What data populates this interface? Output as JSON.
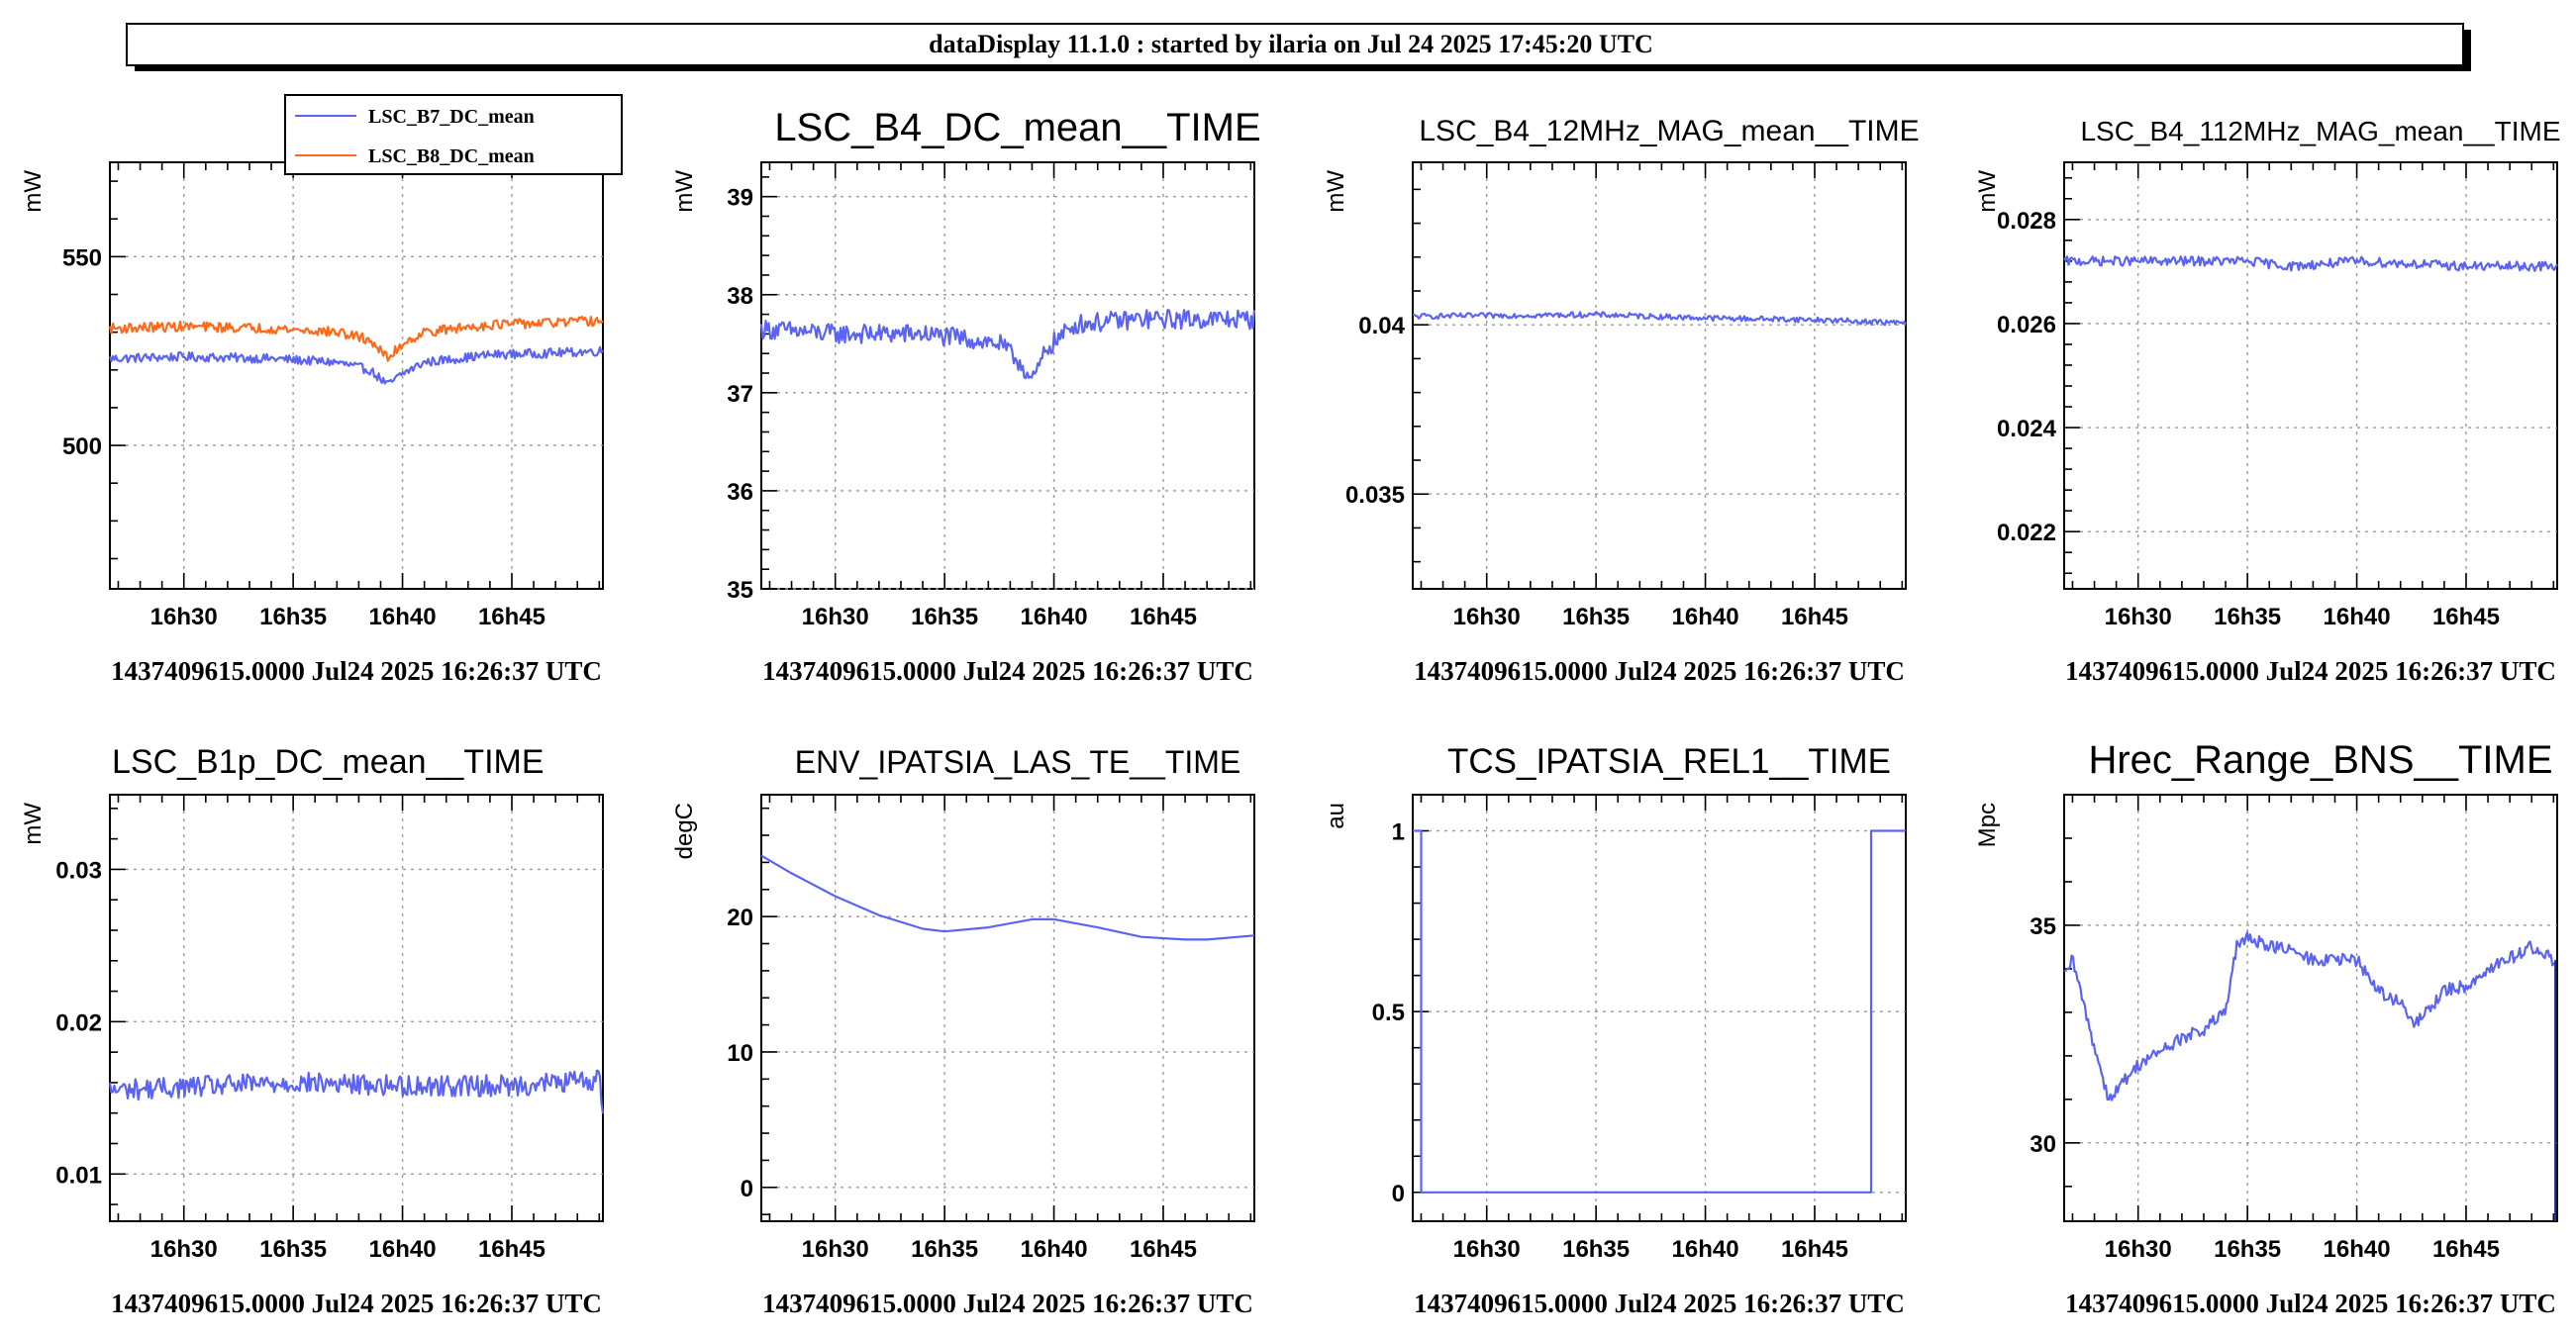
{
  "header": {
    "title": "dataDisplay 11.1.0 : started by ilaria on Jul 24 2025 17:45:20 UTC"
  },
  "colors": {
    "blue": "#5b64f2",
    "orange": "#ff6a1a",
    "navy": "#1f2c8e"
  },
  "chart_data": [
    {
      "type": "line",
      "title": "",
      "ylabel": "mW",
      "footer": "1437409615.0000 Jul24 2025 16:26:37 UTC",
      "x_ticks": [
        "16h30",
        "16h35",
        "16h40",
        "16h45"
      ],
      "xlim": [
        "16h26m37s",
        "16h49m10s"
      ],
      "ylim": [
        462,
        575
      ],
      "y_ticks": [
        500,
        550
      ],
      "y_tick_labels": [
        "500",
        "550"
      ],
      "legend": {
        "placement": "top",
        "entries": [
          "LSC_B7_DC_mean",
          "LSC_B8_DC_mean"
        ]
      },
      "series": [
        {
          "name": "LSC_B7_DC_mean",
          "color": "#5b64f2",
          "noise": 1.2,
          "x": [
            "16h26m37s",
            "16h30m",
            "16h34m",
            "16h37m",
            "16h38m30s",
            "16h39m20s",
            "16h40m",
            "16h41m",
            "16h44m",
            "16h47m",
            "16h49m10s"
          ],
          "y": [
            523,
            523.5,
            523,
            522,
            520,
            516,
            519,
            522,
            524,
            524.5,
            525
          ]
        },
        {
          "name": "LSC_B8_DC_mean",
          "color": "#ff6a1a",
          "noise": 1.3,
          "x": [
            "16h26m37s",
            "16h30m",
            "16h34m",
            "16h37m",
            "16h38m30s",
            "16h39m20s",
            "16h40m",
            "16h41m",
            "16h44m",
            "16h47m",
            "16h49m10s"
          ],
          "y": [
            531,
            531.5,
            531,
            530,
            528,
            523,
            527,
            530,
            532,
            532.5,
            533
          ]
        }
      ]
    },
    {
      "type": "line",
      "title": "LSC_B4_DC_mean__TIME",
      "ylabel": "mW",
      "footer": "1437409615.0000 Jul24 2025 16:26:37 UTC",
      "x_ticks": [
        "16h30",
        "16h35",
        "16h40",
        "16h45"
      ],
      "xlim": [
        "16h26m37s",
        "16h49m10s"
      ],
      "ylim": [
        35,
        39.35
      ],
      "y_ticks": [
        35,
        36,
        37,
        38,
        39
      ],
      "y_tick_labels": [
        "35",
        "36",
        "37",
        "38",
        "39"
      ],
      "series": [
        {
          "name": "",
          "color": "#5b64f2",
          "noise": 0.1,
          "x": [
            "16h26m37s",
            "16h30m",
            "16h34m",
            "16h36m",
            "16h37m30s",
            "16h38m30s",
            "16h39m",
            "16h39m40s",
            "16h41m",
            "16h44m",
            "16h47m",
            "16h49m10s"
          ],
          "y": [
            37.65,
            37.6,
            37.6,
            37.55,
            37.5,
            37.3,
            37.1,
            37.45,
            37.7,
            37.75,
            37.75,
            37.75
          ]
        }
      ]
    },
    {
      "type": "line",
      "title": "LSC_B4_12MHz_MAG_mean__TIME",
      "ylabel": "mW",
      "footer": "1437409615.0000 Jul24 2025 16:26:37 UTC",
      "x_ticks": [
        "16h30",
        "16h35",
        "16h40",
        "16h45"
      ],
      "xlim": [
        "16h26m37s",
        "16h49m10s"
      ],
      "ylim": [
        0.0322,
        0.0448
      ],
      "y_ticks": [
        0.035,
        0.04
      ],
      "y_tick_labels": [
        "0.035",
        "0.04"
      ],
      "series": [
        {
          "name": "",
          "color": "#5b64f2",
          "noise": 8e-05,
          "x": [
            "16h26m37s",
            "16h35m",
            "16h40m",
            "16h45m",
            "16h49m10s"
          ],
          "y": [
            0.04025,
            0.0403,
            0.0402,
            0.04015,
            0.04005
          ]
        }
      ]
    },
    {
      "type": "line",
      "title": "LSC_B4_112MHz_MAG_mean__TIME",
      "ylabel": "mW",
      "footer": "1437409615.0000 Jul24 2025 16:26:37 UTC",
      "x_ticks": [
        "16h30",
        "16h35",
        "16h40",
        "16h45"
      ],
      "xlim": [
        "16h26m37s",
        "16h49m10s"
      ],
      "ylim": [
        0.0209,
        0.0291
      ],
      "y_ticks": [
        0.022,
        0.024,
        0.026,
        0.028
      ],
      "y_tick_labels": [
        "0.022",
        "0.024",
        "0.026",
        "0.028"
      ],
      "series": [
        {
          "name": "",
          "color": "#5b64f2",
          "noise": 9e-05,
          "x": [
            "16h26m37s",
            "16h35m",
            "16h37m",
            "16h40m",
            "16h45m",
            "16h49m10s"
          ],
          "y": [
            0.0272,
            0.0272,
            0.0271,
            0.0272,
            0.0271,
            0.0271
          ]
        }
      ]
    },
    {
      "type": "line",
      "title": "LSC_B1p_DC_mean__TIME",
      "ylabel": "mW",
      "footer": "1437409615.0000 Jul24 2025 16:26:37 UTC",
      "x_ticks": [
        "16h30",
        "16h35",
        "16h40",
        "16h45"
      ],
      "xlim": [
        "16h26m37s",
        "16h49m10s"
      ],
      "ylim": [
        0.0069,
        0.0349
      ],
      "y_ticks": [
        0.01,
        0.02,
        0.03
      ],
      "y_tick_labels": [
        "0.01",
        "0.02",
        "0.03"
      ],
      "series": [
        {
          "name": "",
          "color": "#5b64f2",
          "noise": 0.0007,
          "x": [
            "16h26m37s",
            "16h35m",
            "16h40m",
            "16h45m",
            "16h49m",
            "16h49m10s"
          ],
          "y": [
            0.0155,
            0.016,
            0.0158,
            0.0158,
            0.0162,
            0.0145
          ]
        }
      ]
    },
    {
      "type": "line",
      "title": "ENV_IPATSIA_LAS_TE__TIME",
      "ylabel": "degC",
      "footer": "1437409615.0000 Jul24 2025 16:26:37 UTC",
      "x_ticks": [
        "16h30",
        "16h35",
        "16h40",
        "16h45"
      ],
      "xlim": [
        "16h26m37s",
        "16h49m10s"
      ],
      "ylim": [
        -2.5,
        29
      ],
      "y_ticks": [
        0,
        10,
        20
      ],
      "y_tick_labels": [
        "0",
        "10",
        "20"
      ],
      "series": [
        {
          "name": "",
          "color": "#5b64f2",
          "noise": 0,
          "x": [
            "16h26m37s",
            "16h28m",
            "16h30m",
            "16h32m",
            "16h34m",
            "16h35m",
            "16h37m",
            "16h39m",
            "16h40m",
            "16h42m",
            "16h44m",
            "16h46m",
            "16h47m",
            "16h49m10s"
          ],
          "y": [
            24.5,
            23.2,
            21.5,
            20.1,
            19.1,
            18.9,
            19.2,
            19.8,
            19.8,
            19.2,
            18.5,
            18.3,
            18.3,
            18.6
          ]
        }
      ]
    },
    {
      "type": "line",
      "title": "TCS_IPATSIA_REL1__TIME",
      "ylabel": "au",
      "footer": "1437409615.0000 Jul24 2025 16:26:37 UTC",
      "x_ticks": [
        "16h30",
        "16h35",
        "16h40",
        "16h45"
      ],
      "xlim": [
        "16h26m37s",
        "16h49m10s"
      ],
      "ylim": [
        -0.08,
        1.1
      ],
      "y_ticks": [
        0,
        0.5,
        1
      ],
      "y_tick_labels": [
        "0",
        "0.5",
        "1"
      ],
      "series": [
        {
          "name": "",
          "color": "#5b64f2",
          "noise": 0,
          "x": [
            "16h26m37s",
            "16h27m",
            "16h27m",
            "16h47m35s",
            "16h47m35s",
            "16h49m10s"
          ],
          "y": [
            1,
            1,
            0,
            0,
            1,
            1
          ]
        }
      ]
    },
    {
      "type": "line",
      "title": "Hrec_Range_BNS__TIME",
      "ylabel": "Mpc",
      "footer": "1437409615.0000 Jul24 2025 16:26:37 UTC",
      "x_ticks": [
        "16h30",
        "16h35",
        "16h40",
        "16h45"
      ],
      "xlim": [
        "16h26m37s",
        "16h49m10s"
      ],
      "ylim": [
        28.2,
        38
      ],
      "y_ticks": [
        30,
        35
      ],
      "y_tick_labels": [
        "30",
        "35"
      ],
      "series": [
        {
          "name": "",
          "color": "#5b64f2",
          "noise": 0.15,
          "x": [
            "16h26m37s",
            "16h27m",
            "16h28m",
            "16h28m40s",
            "16h30m",
            "16h32m",
            "16h33m",
            "16h34m",
            "16h34m30s",
            "16h35m",
            "16h37m",
            "16h38m",
            "16h40m",
            "16h41m",
            "16h42m",
            "16h42m40s",
            "16h44m",
            "16h45m",
            "16h46m",
            "16h48m",
            "16h49m",
            "16h49m05s"
          ],
          "y": [
            33.8,
            34.2,
            32.2,
            31.0,
            31.8,
            32.4,
            32.6,
            33.0,
            34.5,
            34.7,
            34.4,
            34.2,
            34.2,
            33.5,
            33.2,
            32.7,
            33.5,
            33.6,
            34.0,
            34.5,
            34.2,
            34.2
          ]
        },
        {
          "name": "",
          "color": "#1f2c8e",
          "noise": 0,
          "x": [
            "16h49m05s",
            "16h49m05s"
          ],
          "y": [
            34.2,
            28.2
          ]
        }
      ]
    }
  ]
}
